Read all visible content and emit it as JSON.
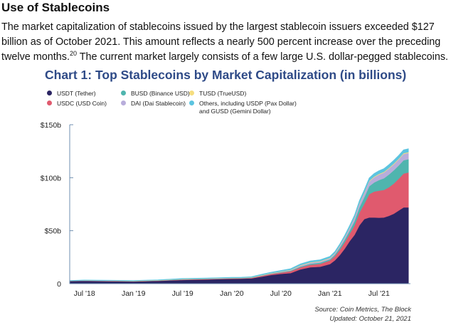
{
  "article": {
    "heading": "Use of Stablecoins",
    "para_main": "The market capitalization of stablecoins issued by the largest stablecoin issuers exceeded $127 billion as of October 2021. This amount reflects a nearly 500 percent increase over the preceding twelve months.",
    "footnote_ref": "20",
    "para_tail": " The current market largely consists of a few large U.S. dollar-pegged stablecoins."
  },
  "source": {
    "line1": "Source:  Coin Metrics, The Block",
    "line2": "Updated: October 21, 2021"
  },
  "chart_data": {
    "type": "area",
    "stacked": true,
    "title": "Chart 1: Top Stablecoins by Market Capitalization (in billions)",
    "xlabel": "",
    "ylabel": "",
    "ylim": [
      0,
      150
    ],
    "y_ticks": [
      0,
      50,
      100,
      150
    ],
    "y_tick_labels": [
      "0",
      "$50b",
      "$100b",
      "$150b"
    ],
    "x_ticks": [
      2018.5,
      2019.0,
      2019.5,
      2020.0,
      2020.5,
      2021.0,
      2021.5
    ],
    "x_tick_labels": [
      "Jul '18",
      "Jan '19",
      "Jul '19",
      "Jan '20",
      "Jul '20",
      "Jan '21",
      "Jul '21"
    ],
    "xlim": [
      2018.35,
      2021.82
    ],
    "grid": false,
    "legend_position": "top",
    "x": [
      2018.35,
      2018.5,
      2018.75,
      2019.0,
      2019.25,
      2019.5,
      2019.75,
      2020.0,
      2020.1,
      2020.2,
      2020.3,
      2020.4,
      2020.5,
      2020.6,
      2020.7,
      2020.8,
      2020.9,
      2021.0,
      2021.05,
      2021.1,
      2021.15,
      2021.2,
      2021.25,
      2021.3,
      2021.35,
      2021.4,
      2021.45,
      2021.5,
      2021.55,
      2021.6,
      2021.65,
      2021.7,
      2021.75,
      2021.8
    ],
    "series": [
      {
        "name": "USDT (Tether)",
        "color": "#2b2563",
        "values": [
          2.5,
          2.7,
          2.3,
          2.0,
          2.6,
          3.5,
          4.0,
          4.6,
          4.7,
          5.0,
          6.5,
          8.2,
          9.3,
          10.0,
          13.5,
          15.5,
          16.0,
          18.5,
          22.0,
          27.0,
          33.0,
          40.0,
          46.0,
          55.0,
          61.0,
          62.5,
          62.5,
          62.3,
          62.5,
          64.0,
          66.0,
          69.0,
          72.0,
          72.0
        ]
      },
      {
        "name": "USDC (USD Coin)",
        "color": "#e05a6e",
        "values": [
          0.1,
          0.2,
          0.3,
          0.3,
          0.3,
          0.4,
          0.4,
          0.4,
          0.4,
          0.5,
          0.8,
          1.0,
          1.2,
          1.8,
          2.0,
          2.4,
          2.7,
          3.5,
          4.0,
          5.0,
          6.0,
          7.0,
          9.0,
          12.0,
          14.5,
          22.0,
          24.5,
          25.5,
          26.0,
          27.0,
          28.5,
          30.0,
          32.0,
          33.0
        ]
      },
      {
        "name": "BUSD (Binance USD)",
        "color": "#4fb5ae",
        "values": [
          0.0,
          0.0,
          0.0,
          0.05,
          0.1,
          0.2,
          0.2,
          0.2,
          0.2,
          0.2,
          0.3,
          0.3,
          0.4,
          0.5,
          0.7,
          0.9,
          1.2,
          1.0,
          1.4,
          2.0,
          2.5,
          3.0,
          4.0,
          5.0,
          6.0,
          7.5,
          8.5,
          10.0,
          11.0,
          12.0,
          12.5,
          12.5,
          12.5,
          12.5
        ]
      },
      {
        "name": "DAI (Dai Stablecoin)",
        "color": "#b8addb",
        "values": [
          0.05,
          0.05,
          0.1,
          0.1,
          0.1,
          0.1,
          0.1,
          0.1,
          0.1,
          0.1,
          0.2,
          0.2,
          0.3,
          0.5,
          0.9,
          1.0,
          1.0,
          1.0,
          1.1,
          1.5,
          2.0,
          2.4,
          3.0,
          3.5,
          4.0,
          4.5,
          5.0,
          5.2,
          5.4,
          5.6,
          5.7,
          5.8,
          6.0,
          6.0
        ]
      },
      {
        "name": "TUSD (TrueUSD)",
        "color": "#f5dd7f",
        "values": [
          0.1,
          0.15,
          0.15,
          0.2,
          0.2,
          0.2,
          0.2,
          0.2,
          0.2,
          0.2,
          0.3,
          0.3,
          0.4,
          0.4,
          0.4,
          0.4,
          0.4,
          0.4,
          0.4,
          0.4,
          0.4,
          0.4,
          0.5,
          0.5,
          0.6,
          0.6,
          0.6,
          0.7,
          0.7,
          0.7,
          0.7,
          0.7,
          0.7,
          0.7
        ]
      },
      {
        "name": "Others, including USDP (Pax Dollar) and GUSD (Gemini Dollar)",
        "color": "#5cc4e0",
        "values": [
          0.3,
          0.4,
          0.4,
          0.4,
          0.4,
          0.5,
          0.5,
          0.5,
          0.5,
          0.6,
          0.7,
          0.8,
          0.9,
          1.0,
          1.2,
          1.3,
          1.3,
          1.4,
          1.5,
          1.6,
          1.8,
          2.0,
          2.2,
          2.4,
          2.6,
          2.8,
          2.9,
          3.0,
          3.0,
          3.0,
          3.1,
          3.1,
          3.2,
          3.2
        ]
      }
    ],
    "legend": [
      {
        "label": "USDT (Tether)",
        "color": "#2b2563"
      },
      {
        "label": "BUSD (Binance USD)",
        "color": "#4fb5ae"
      },
      {
        "label": "TUSD (TrueUSD)",
        "color": "#f5dd7f"
      },
      {
        "label": "USDC (USD Coin)",
        "color": "#e05a6e"
      },
      {
        "label": "DAI (Dai Stablecoin)",
        "color": "#b8addb"
      },
      {
        "label": "Others, including USDP (Pax Dollar)",
        "label2": "and GUSD (Gemini Dollar)",
        "color": "#5cc4e0"
      }
    ],
    "axis_color": "#6f8fb0"
  }
}
